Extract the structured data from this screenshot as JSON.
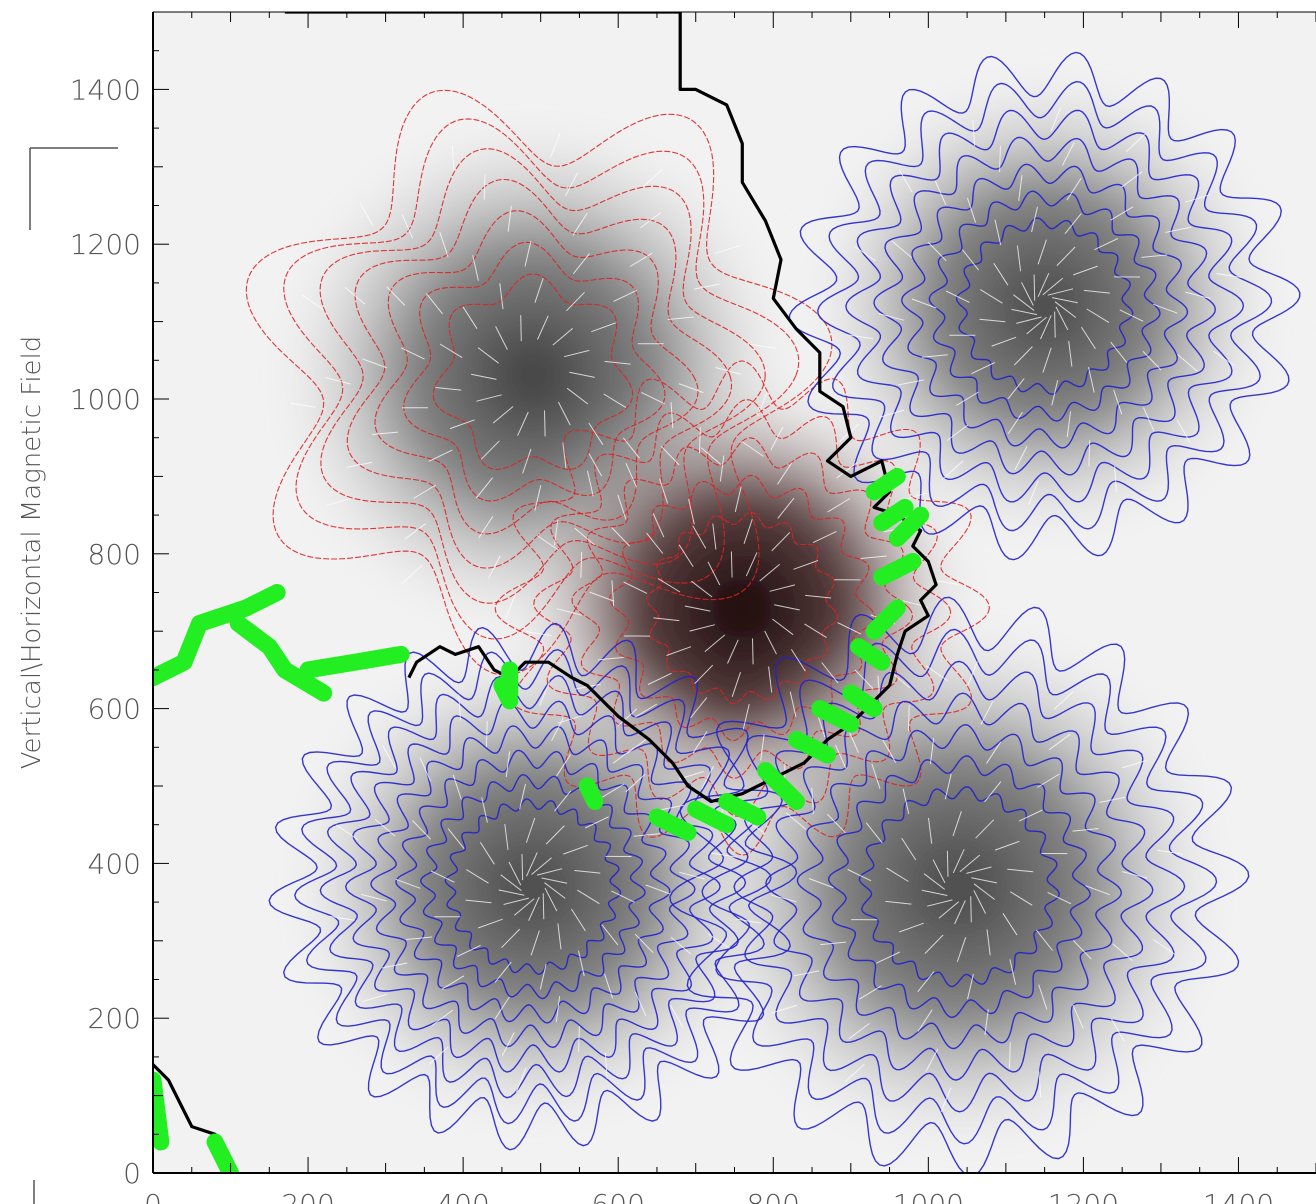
{
  "chart_data": {
    "type": "heatmap",
    "title": "",
    "ylabel": "Vertical\\Horizontal Magnetic Field",
    "xlabel": "",
    "xlim": [
      0,
      1500
    ],
    "ylim": [
      0,
      1500
    ],
    "x_ticks": [
      "0",
      "200",
      "400",
      "600",
      "800",
      "1000",
      "1200",
      "1400"
    ],
    "y_ticks": [
      "0",
      "200",
      "400",
      "600",
      "800",
      "1000",
      "1200",
      "1400"
    ],
    "grid": false,
    "colors": {
      "positive_contours": "#dd2222",
      "negative_contours": "#2222cc",
      "polarity_inversion_line": "#000000",
      "strong_shear_segments": "#22ee22",
      "field_vectors": "#ffffff",
      "background": "#f2f2f2"
    },
    "sources": [
      {
        "polarity": "positive",
        "x": 490,
        "y": 1030,
        "radius": 330,
        "lobes": 7,
        "levels": 7,
        "strength": 0.55
      },
      {
        "polarity": "positive",
        "x": 760,
        "y": 730,
        "radius": 290,
        "lobes": 16,
        "levels": 5,
        "strength": 1.0
      },
      {
        "polarity": "negative",
        "x": 1150,
        "y": 1120,
        "radius": 300,
        "lobes": 18,
        "levels": 7,
        "strength": 0.55
      },
      {
        "polarity": "negative",
        "x": 490,
        "y": 370,
        "radius": 310,
        "lobes": 22,
        "levels": 8,
        "strength": 0.6
      },
      {
        "polarity": "negative",
        "x": 1040,
        "y": 370,
        "radius": 340,
        "lobes": 20,
        "levels": 7,
        "strength": 0.5
      }
    ],
    "polarity_inversion_line": [
      [
        170,
        1500
      ],
      [
        680,
        1500
      ],
      [
        680,
        1400
      ],
      [
        700,
        1400
      ],
      [
        740,
        1380
      ],
      [
        760,
        1330
      ],
      [
        760,
        1280
      ],
      [
        790,
        1230
      ],
      [
        810,
        1180
      ],
      [
        800,
        1130
      ],
      [
        830,
        1090
      ],
      [
        860,
        1060
      ],
      [
        860,
        1010
      ],
      [
        890,
        990
      ],
      [
        900,
        950
      ],
      [
        870,
        920
      ],
      [
        900,
        900
      ],
      [
        940,
        920
      ],
      [
        950,
        880
      ],
      [
        930,
        860
      ],
      [
        960,
        850
      ],
      [
        990,
        830
      ],
      [
        980,
        810
      ],
      [
        1000,
        790
      ],
      [
        1010,
        760
      ],
      [
        990,
        740
      ],
      [
        1000,
        720
      ],
      [
        970,
        700
      ],
      [
        960,
        670
      ],
      [
        950,
        630
      ],
      [
        920,
        600
      ],
      [
        900,
        580
      ],
      [
        870,
        560
      ],
      [
        840,
        530
      ],
      [
        800,
        510
      ],
      [
        760,
        490
      ],
      [
        720,
        480
      ],
      [
        690,
        500
      ],
      [
        670,
        530
      ],
      [
        640,
        560
      ],
      [
        600,
        590
      ],
      [
        560,
        630
      ],
      [
        540,
        640
      ],
      [
        510,
        660
      ],
      [
        480,
        660
      ],
      [
        460,
        640
      ],
      [
        440,
        650
      ],
      [
        420,
        680
      ],
      [
        390,
        670
      ],
      [
        370,
        680
      ],
      [
        340,
        660
      ],
      [
        330,
        640
      ]
    ],
    "pil_lower_left": [
      [
        0,
        140
      ],
      [
        20,
        120
      ],
      [
        50,
        60
      ],
      [
        80,
        50
      ],
      [
        90,
        20
      ],
      [
        100,
        0
      ]
    ],
    "strong_shear_segments": [
      [
        [
          0,
          640
        ],
        [
          40,
          660
        ],
        [
          60,
          710
        ],
        [
          120,
          730
        ],
        [
          160,
          750
        ]
      ],
      [
        [
          110,
          710
        ],
        [
          150,
          680
        ],
        [
          170,
          650
        ],
        [
          220,
          620
        ]
      ],
      [
        [
          200,
          650
        ],
        [
          260,
          660
        ],
        [
          320,
          670
        ]
      ],
      [
        [
          460,
          650
        ],
        [
          460,
          620
        ]
      ],
      [
        [
          450,
          630
        ],
        [
          460,
          610
        ]
      ],
      [
        [
          560,
          500
        ],
        [
          570,
          480
        ]
      ],
      [
        [
          650,
          460
        ],
        [
          690,
          440
        ]
      ],
      [
        [
          700,
          470
        ],
        [
          740,
          450
        ]
      ],
      [
        [
          740,
          480
        ],
        [
          780,
          460
        ]
      ],
      [
        [
          790,
          520
        ],
        [
          830,
          480
        ]
      ],
      [
        [
          830,
          560
        ],
        [
          870,
          540
        ]
      ],
      [
        [
          860,
          600
        ],
        [
          900,
          580
        ]
      ],
      [
        [
          900,
          620
        ],
        [
          930,
          600
        ]
      ],
      [
        [
          910,
          680
        ],
        [
          940,
          660
        ]
      ],
      [
        [
          930,
          700
        ],
        [
          960,
          730
        ]
      ],
      [
        [
          940,
          770
        ],
        [
          980,
          790
        ]
      ],
      [
        [
          960,
          820
        ],
        [
          990,
          850
        ]
      ],
      [
        [
          940,
          840
        ],
        [
          970,
          860
        ]
      ],
      [
        [
          930,
          880
        ],
        [
          960,
          900
        ]
      ],
      [
        [
          0,
          120
        ],
        [
          10,
          40
        ]
      ],
      [
        [
          80,
          40
        ],
        [
          100,
          0
        ]
      ]
    ]
  }
}
